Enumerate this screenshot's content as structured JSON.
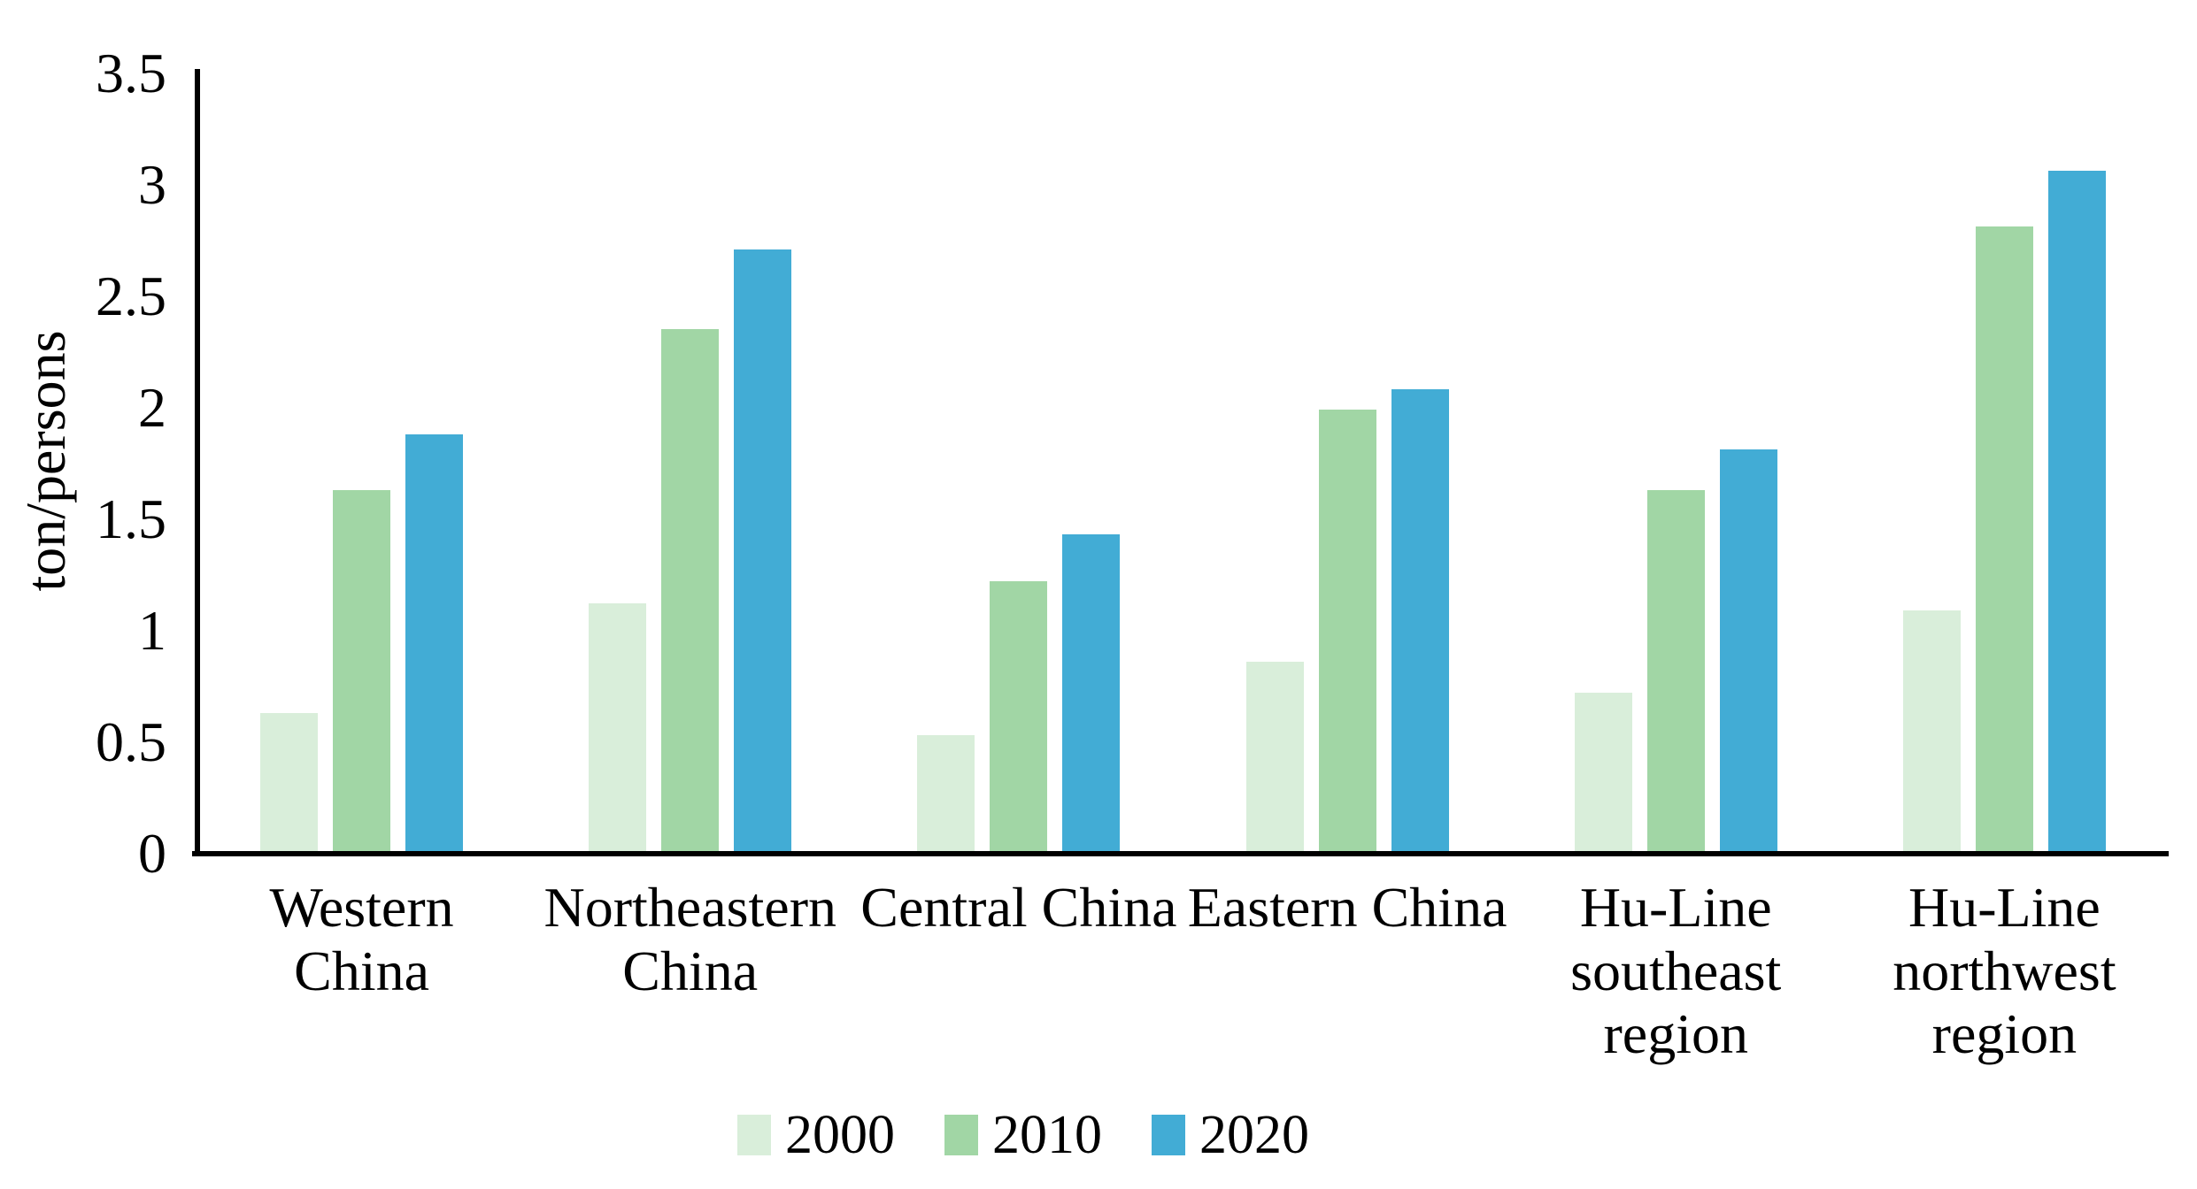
{
  "chart_data": {
    "type": "bar",
    "title": "",
    "xlabel": "",
    "ylabel": "ton/persons",
    "ylim": [
      0,
      3.5
    ],
    "yticks": [
      0,
      0.5,
      1,
      1.5,
      2,
      2.5,
      3,
      3.5
    ],
    "grid": false,
    "legend_position": "bottom",
    "axis_color": "#000000",
    "categories": [
      "Western China",
      "Northeastern China",
      "Central China",
      "Eastern China",
      "Hu-Line southeast region",
      "Hu-Line northwest region"
    ],
    "series": [
      {
        "name": "2000",
        "color": "#d9eeda",
        "values": [
          0.62,
          1.11,
          0.52,
          0.85,
          0.71,
          1.08
        ]
      },
      {
        "name": "2010",
        "color": "#a1d6a5",
        "values": [
          1.62,
          2.34,
          1.21,
          1.98,
          1.62,
          2.8
        ]
      },
      {
        "name": "2020",
        "color": "#42acd5",
        "values": [
          1.87,
          2.7,
          1.42,
          2.07,
          1.8,
          3.05
        ]
      }
    ]
  }
}
